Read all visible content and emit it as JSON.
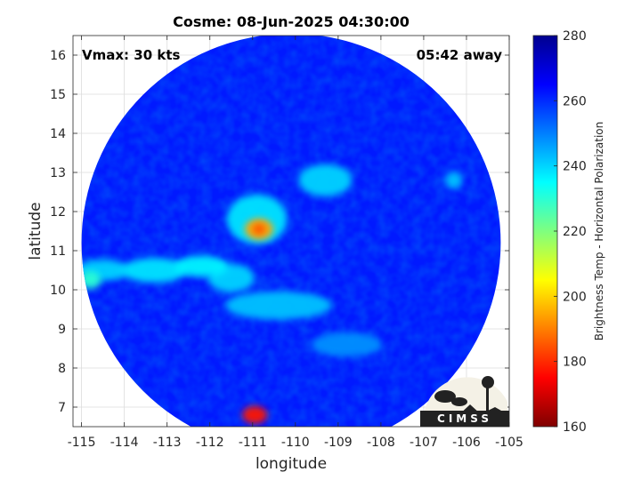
{
  "chart_data": {
    "type": "heatmap",
    "title": "Cosme: 08-Jun-2025 04:30:00",
    "xlabel": "longitude",
    "ylabel": "latitude",
    "xlim": [
      -115.2,
      -105
    ],
    "ylim": [
      6.5,
      16.5
    ],
    "xticks": [
      -115,
      -114,
      -113,
      -112,
      -111,
      -110,
      -109,
      -108,
      -107,
      -106,
      -105
    ],
    "yticks": [
      7,
      8,
      9,
      10,
      11,
      12,
      13,
      14,
      15,
      16
    ],
    "grid": true,
    "annotations": {
      "vmax": "Vmax: 30 kts",
      "time_offset": "05:42 away"
    },
    "colorbar": {
      "label": "Brightness Temp - Horizontal Polarization",
      "range": [
        160,
        280
      ],
      "ticks": [
        160,
        180,
        200,
        220,
        240,
        260,
        280
      ],
      "colormap": "jet"
    },
    "swath": {
      "center_lon": -110.1,
      "center_lat": 11.2,
      "radius_deg": 4.9,
      "background_value": 262
    },
    "features": [
      {
        "name": "core",
        "lon": -110.85,
        "lat": 11.55,
        "value": 195
      },
      {
        "name": "inner-ring",
        "lon": -110.9,
        "lat": 11.8,
        "value": 238
      },
      {
        "name": "western-band-1",
        "lon": -114.5,
        "lat": 10.5,
        "value": 240
      },
      {
        "name": "western-band-2",
        "lon": -113.3,
        "lat": 10.5,
        "value": 238
      },
      {
        "name": "western-band-3",
        "lon": -112.2,
        "lat": 10.6,
        "value": 236
      },
      {
        "name": "western-spot",
        "lon": -114.8,
        "lat": 10.25,
        "value": 230
      },
      {
        "name": "northern-cell",
        "lon": -109.3,
        "lat": 12.8,
        "value": 240
      },
      {
        "name": "southern-arc",
        "lon": -110.4,
        "lat": 9.6,
        "value": 242
      },
      {
        "name": "southwest-band",
        "lon": -111.5,
        "lat": 10.3,
        "value": 240
      },
      {
        "name": "eastern-cell",
        "lon": -106.3,
        "lat": 12.8,
        "value": 242
      },
      {
        "name": "southern-hotspot",
        "lon": -110.95,
        "lat": 6.8,
        "value": 178
      },
      {
        "name": "southeast-band",
        "lon": -108.8,
        "lat": 8.6,
        "value": 248
      }
    ]
  },
  "logo": {
    "text": "CIMSS"
  },
  "colors": {
    "jet": [
      "#7f0000",
      "#ff0000",
      "#ff7f00",
      "#ffff00",
      "#7fff7f",
      "#00ffff",
      "#007fff",
      "#0000ff",
      "#00008f"
    ]
  }
}
